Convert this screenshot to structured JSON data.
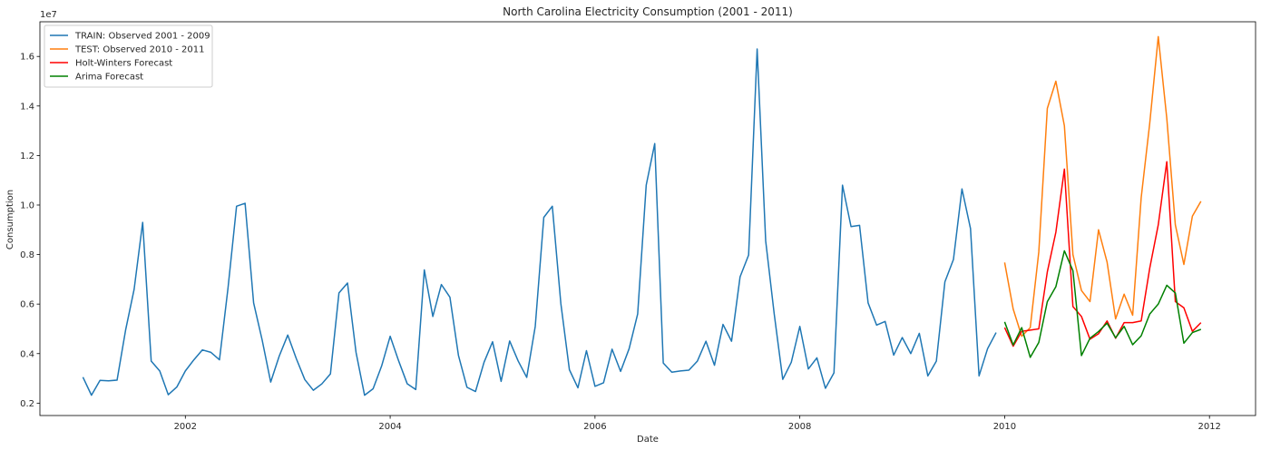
{
  "chart_data": {
    "type": "line",
    "title": "North Carolina Electricity Consumption (2001 - 2011)",
    "xlabel": "Date",
    "ylabel": "Consumption",
    "y_offset_text": "1e7",
    "xlim": [
      2000.58,
      2012.45
    ],
    "ylim": [
      1500000,
      17400000
    ],
    "x_ticks": [
      2002,
      2004,
      2006,
      2008,
      2010,
      2012
    ],
    "y_ticks": [
      2000000,
      4000000,
      6000000,
      8000000,
      10000000,
      12000000,
      14000000,
      16000000
    ],
    "y_tick_labels": [
      "0.2",
      "0.4",
      "0.6",
      "0.8",
      "1.0",
      "1.2",
      "1.4",
      "1.6"
    ],
    "legend_position": "upper-left",
    "grid": false,
    "series": [
      {
        "name": "TRAIN: Observed 2001 - 2009",
        "color": "#1f77b4",
        "x_start": 2001.0,
        "x_step": 0.0833333,
        "values": [
          3050000,
          2320000,
          2920000,
          2900000,
          2930000,
          4950000,
          6600000,
          9300000,
          3700000,
          3300000,
          2340000,
          2650000,
          3300000,
          3750000,
          4150000,
          4050000,
          3750000,
          6650000,
          9950000,
          10070000,
          6050000,
          4550000,
          2850000,
          3900000,
          4750000,
          3800000,
          2950000,
          2520000,
          2780000,
          3180000,
          6450000,
          6850000,
          4050000,
          2320000,
          2580000,
          3500000,
          4700000,
          3700000,
          2780000,
          2550000,
          7380000,
          5500000,
          6790000,
          6280000,
          3930000,
          2640000,
          2470000,
          3650000,
          4480000,
          2880000,
          4510000,
          3700000,
          3040000,
          5100000,
          9500000,
          9950000,
          6020000,
          3350000,
          2620000,
          4120000,
          2680000,
          2820000,
          4180000,
          3280000,
          4200000,
          5600000,
          10800000,
          12480000,
          3620000,
          3250000,
          3300000,
          3330000,
          3700000,
          4500000,
          3530000,
          5180000,
          4500000,
          7100000,
          7980000,
          16300000,
          8550000,
          5600000,
          2960000,
          3650000,
          5100000,
          3380000,
          3830000,
          2600000,
          3220000,
          10800000,
          9130000,
          9180000,
          6050000,
          5150000,
          5300000,
          3940000,
          4650000,
          4000000,
          4820000,
          3100000,
          3700000,
          6900000,
          7800000,
          10650000,
          9050000,
          3100000,
          4200000,
          4850000
        ]
      },
      {
        "name": "TEST: Observed 2010 - 2011",
        "color": "#ff7f0e",
        "x_start": 2010.0,
        "x_step": 0.0833333,
        "values": [
          7680000,
          5800000,
          4700000,
          5050000,
          8100000,
          13900000,
          15000000,
          13200000,
          8000000,
          6550000,
          6100000,
          9000000,
          7700000,
          5400000,
          6400000,
          5550000,
          10300000,
          13300000,
          16800000,
          13500000,
          9200000,
          7600000,
          9550000,
          10150000
        ]
      },
      {
        "name": "Holt-Winters Forecast",
        "color": "#ff0000",
        "x_start": 2010.0,
        "x_step": 0.0833333,
        "values": [
          5050000,
          4300000,
          4900000,
          4950000,
          5000000,
          7300000,
          8900000,
          11450000,
          5900000,
          5500000,
          4580000,
          4800000,
          5320000,
          4620000,
          5250000,
          5250000,
          5320000,
          7450000,
          9200000,
          11750000,
          6100000,
          5850000,
          4900000,
          5250000
        ]
      },
      {
        "name": "Arima Forecast",
        "color": "#008000",
        "x_start": 2010.0,
        "x_step": 0.0833333,
        "values": [
          5280000,
          4350000,
          5050000,
          3850000,
          4450000,
          6100000,
          6700000,
          8150000,
          7350000,
          3920000,
          4620000,
          4890000,
          5230000,
          4640000,
          5100000,
          4360000,
          4720000,
          5600000,
          6000000,
          6760000,
          6450000,
          4420000,
          4850000,
          4980000
        ]
      }
    ]
  }
}
